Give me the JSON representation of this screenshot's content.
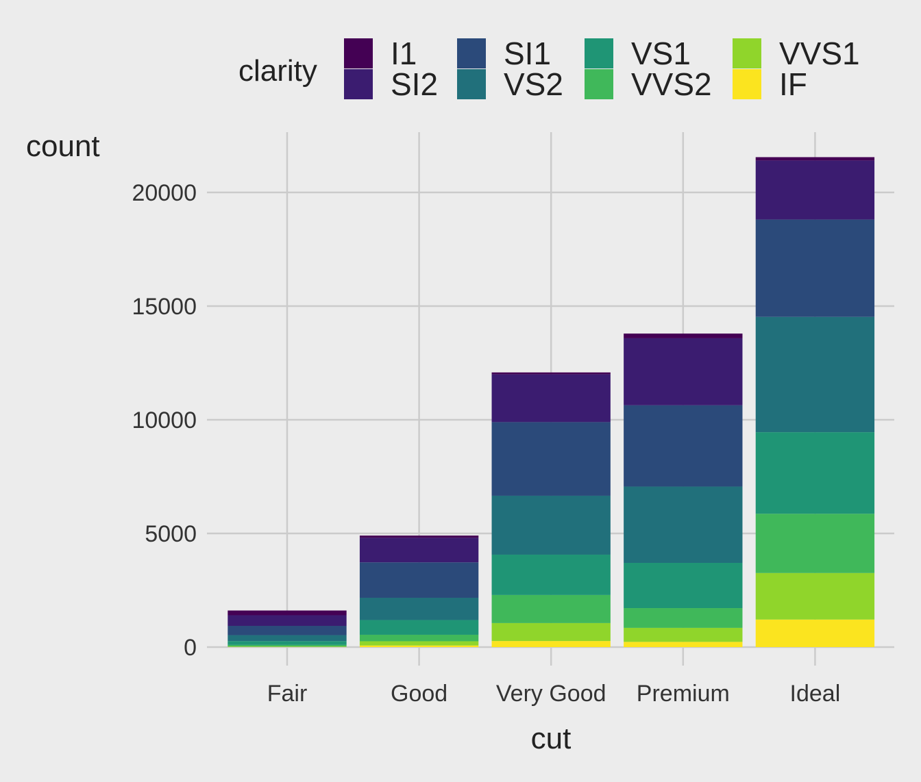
{
  "chart_data": {
    "type": "bar",
    "stacked": true,
    "categories": [
      "Fair",
      "Good",
      "Very Good",
      "Premium",
      "Ideal"
    ],
    "xlabel": "cut",
    "ylabel": "count",
    "ylim": [
      0,
      22000
    ],
    "yticks": [
      0,
      5000,
      10000,
      15000,
      20000
    ],
    "ytick_labels": [
      "0",
      "5000",
      "10000",
      "15000",
      "20000"
    ],
    "grid": true,
    "legend": {
      "title": "clarity",
      "placement": "top"
    },
    "series": [
      {
        "name": "I1",
        "color": "#440154",
        "values": [
          210,
          96,
          84,
          205,
          146
        ]
      },
      {
        "name": "SI2",
        "color": "#3b1c70",
        "values": [
          466,
          1081,
          2100,
          2949,
          2598
        ]
      },
      {
        "name": "SI1",
        "color": "#2b4a7a",
        "values": [
          408,
          1560,
          3240,
          3575,
          4282
        ]
      },
      {
        "name": "VS2",
        "color": "#21707b",
        "values": [
          261,
          978,
          2591,
          3357,
          5071
        ]
      },
      {
        "name": "VS1",
        "color": "#1f9575",
        "values": [
          170,
          648,
          1775,
          1989,
          3589
        ]
      },
      {
        "name": "VVS2",
        "color": "#40b85a",
        "values": [
          69,
          286,
          1235,
          870,
          2606
        ]
      },
      {
        "name": "VVS1",
        "color": "#90d52b",
        "values": [
          17,
          186,
          789,
          616,
          2047
        ]
      },
      {
        "name": "IF",
        "color": "#fbe41f",
        "values": [
          9,
          71,
          268,
          230,
          1212
        ]
      }
    ]
  }
}
